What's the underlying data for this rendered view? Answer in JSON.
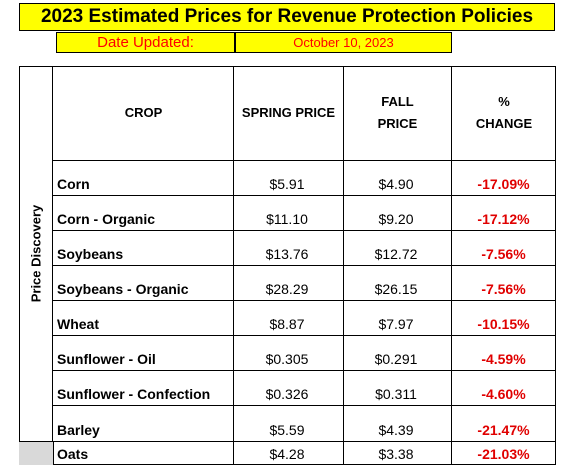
{
  "title": "2023 Estimated Prices for Revenue Protection Policies",
  "date_label": "Date Updated:",
  "date_value": "October 10, 2023",
  "side_label": "Price Discovery",
  "headers": {
    "crop": "CROP",
    "spring": "SPRING PRICE",
    "fall_line1": "FALL",
    "fall_line2": "PRICE",
    "change_line1": "%",
    "change_line2": "CHANGE"
  },
  "rows": [
    {
      "crop": "Corn",
      "spring": "$5.91",
      "fall": "$4.90",
      "change": "-17.09%"
    },
    {
      "crop": "Corn - Organic",
      "spring": "$11.10",
      "fall": "$9.20",
      "change": "-17.12%"
    },
    {
      "crop": "Soybeans",
      "spring": "$13.76",
      "fall": "$12.72",
      "change": "-7.56%"
    },
    {
      "crop": "Soybeans - Organic",
      "spring": "$28.29",
      "fall": "$26.15",
      "change": "-7.56%"
    },
    {
      "crop": "Wheat",
      "spring": "$8.87",
      "fall": "$7.97",
      "change": "-10.15%"
    },
    {
      "crop": "Sunflower - Oil",
      "spring": "$0.305",
      "fall": "$0.291",
      "change": "-4.59%"
    },
    {
      "crop": "Sunflower - Confection",
      "spring": "$0.326",
      "fall": "$0.311",
      "change": "-4.60%"
    },
    {
      "crop": "Barley",
      "spring": "$5.59",
      "fall": "$4.39",
      "change": "-21.47%"
    },
    {
      "crop": "Oats",
      "spring": "$4.28",
      "fall": "$3.38",
      "change": "-21.03%"
    }
  ],
  "colors": {
    "highlight": "#ffff00",
    "date_text": "#ff0000",
    "negative": "#e00000",
    "gray_cell": "#d9d9d9"
  }
}
